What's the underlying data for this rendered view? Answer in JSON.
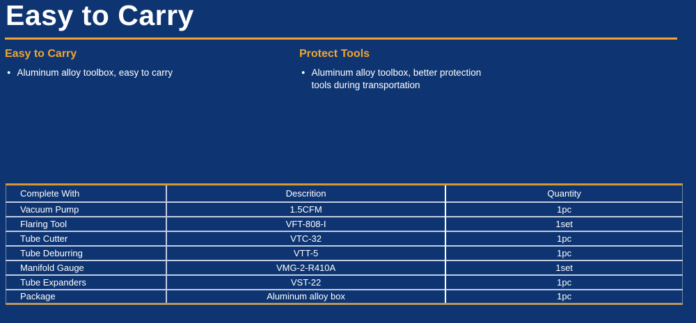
{
  "page": {
    "title": "Easy to Carry"
  },
  "sections": [
    {
      "heading": "Easy to Carry",
      "bullets": [
        "Aluminum alloy toolbox, easy to carry"
      ]
    },
    {
      "heading": "Protect Tools",
      "bullets": [
        "Aluminum alloy toolbox, better protection tools during transportation"
      ]
    }
  ],
  "table": {
    "headers": [
      "Complete With",
      "Descrition",
      "Quantity"
    ],
    "rows": [
      [
        "Vacuum Pump",
        "1.5CFM",
        "1pc"
      ],
      [
        "Flaring Tool",
        "VFT-808-I",
        "1set"
      ],
      [
        "Tube Cutter",
        "VTC-32",
        "1pc"
      ],
      [
        "Tube Deburring",
        "VTT-5",
        "1pc"
      ],
      [
        "Manifold Gauge",
        "VMG-2-R410A",
        "1set"
      ],
      [
        "Tube Expanders",
        "VST-22",
        "1pc"
      ],
      [
        "Package",
        "Aluminum alloy box",
        "1pc"
      ]
    ]
  },
  "colors": {
    "background": "#0e3572",
    "accent-orange": "#f2a52f",
    "table-top-border": "#d9982f",
    "table-bottom-border": "#bf9457",
    "grid-light": "#c3cde3",
    "grid-white": "#ffffff",
    "text": "#ffffff"
  }
}
